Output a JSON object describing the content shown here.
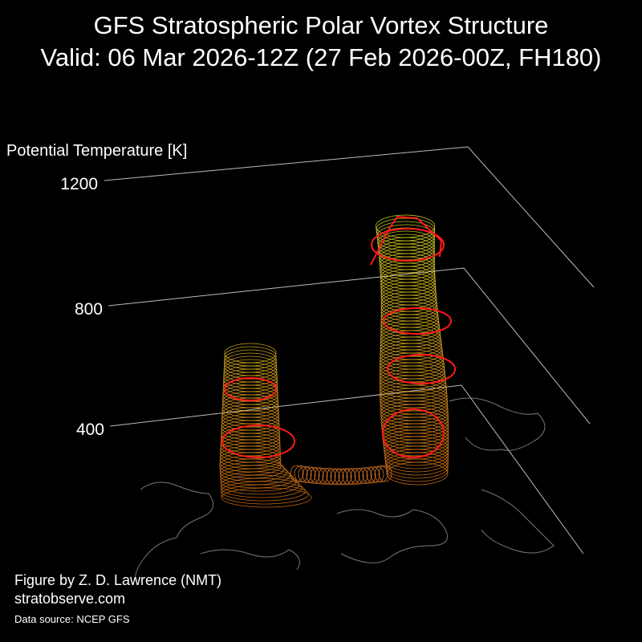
{
  "title": "GFS Stratospheric Polar Vortex Structure",
  "subtitle": "Valid: 06 Mar 2026-12Z  (27 Feb 2026-00Z, FH180)",
  "axis": {
    "label": "Potential Temperature [K]",
    "ticks": [
      "1200",
      "800",
      "400"
    ]
  },
  "credits": {
    "author": "Figure by Z. D. Lawrence (NMT)",
    "site": "stratobserve.com",
    "source": "Data source: NCEP GFS"
  }
}
